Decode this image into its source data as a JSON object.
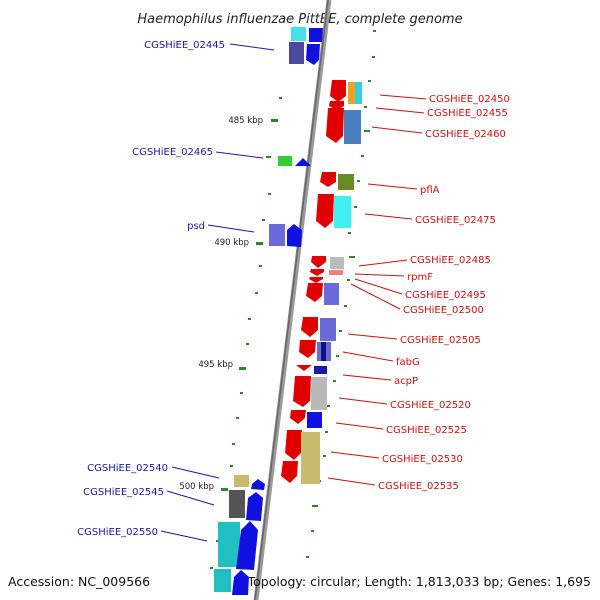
{
  "title": "Haemophilus influenzae PittEE, complete genome",
  "footer": {
    "accession": "Accession: NC_009566",
    "summary": "Topology: circular; Length: 1,813,033 bp; Genes: 1,695"
  },
  "scale_ticks": [
    {
      "label": "485 kbp"
    },
    {
      "label": "490 kbp"
    },
    {
      "label": "495 kbp"
    },
    {
      "label": "500 kbp"
    }
  ],
  "gene_labels_left": [
    {
      "label": "CGSHiEE_02445",
      "color": "#1a1aa6"
    },
    {
      "label": "CGSHiEE_02465",
      "color": "#1a1aa6"
    },
    {
      "label": "psd",
      "color": "#1a1aa6"
    },
    {
      "label": "CGSHiEE_02540",
      "color": "#1a1aa6"
    },
    {
      "label": "CGSHiEE_02545",
      "color": "#1a1aa6"
    },
    {
      "label": "CGSHiEE_02550",
      "color": "#1a1aa6"
    }
  ],
  "gene_labels_right": [
    {
      "label": "CGSHiEE_02450",
      "color": "#cc1111"
    },
    {
      "label": "CGSHiEE_02455",
      "color": "#cc1111"
    },
    {
      "label": "CGSHiEE_02460",
      "color": "#cc1111"
    },
    {
      "label": "pflA",
      "color": "#cc1111"
    },
    {
      "label": "CGSHiEE_02475",
      "color": "#cc1111"
    },
    {
      "label": "CGSHiEE_02485",
      "color": "#cc1111"
    },
    {
      "label": "rpmF",
      "color": "#cc1111"
    },
    {
      "label": "CGSHiEE_02495",
      "color": "#cc1111"
    },
    {
      "label": "CGSHiEE_02500",
      "color": "#cc1111"
    },
    {
      "label": "CGSHiEE_02505",
      "color": "#cc1111"
    },
    {
      "label": "fabG",
      "color": "#cc1111"
    },
    {
      "label": "acpP",
      "color": "#cc1111"
    },
    {
      "label": "CGSHiEE_02520",
      "color": "#cc1111"
    },
    {
      "label": "CGSHiEE_02525",
      "color": "#cc1111"
    },
    {
      "label": "CGSHiEE_02530",
      "color": "#cc1111"
    },
    {
      "label": "CGSHiEE_02535",
      "color": "#cc1111"
    }
  ],
  "colors": {
    "backbone": "#7a7a7a",
    "forward_strand": "#e00000",
    "reverse_strand": "#0a0ae0",
    "gc_skew": "#2a8a2a"
  }
}
